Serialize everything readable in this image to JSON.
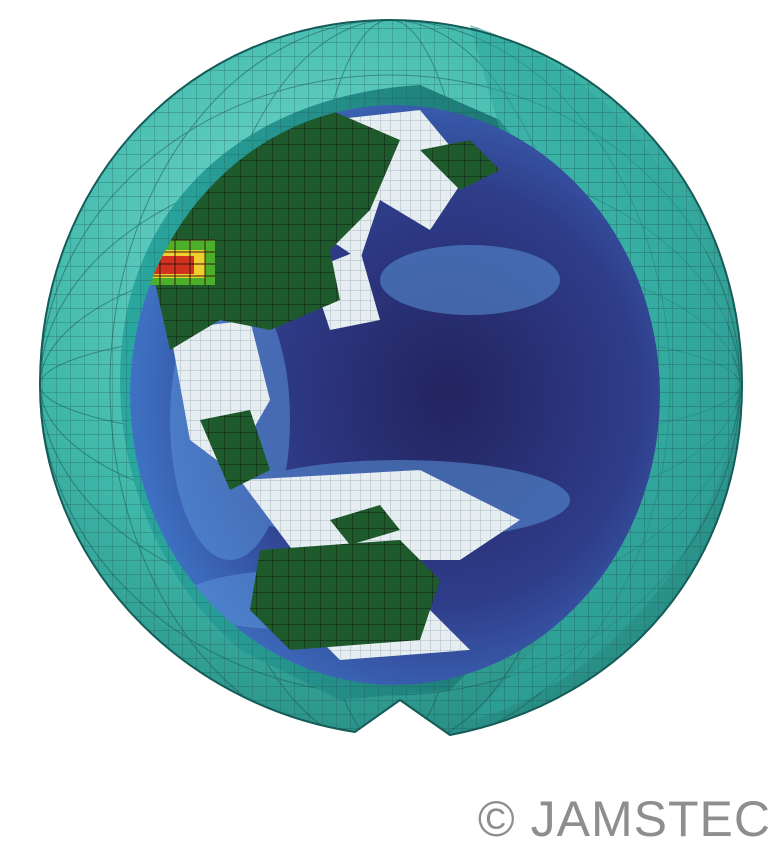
{
  "figure": {
    "subject": "cutaway-globe-grid-model",
    "colors": {
      "outer_shell": "#3fb8aa",
      "grid_line": "#1d4f4f",
      "ocean_deep": "#2a2a6e",
      "ocean_mid": "#3f6fc0",
      "ice_white": "#e6eef2",
      "land_green": "#1f5a2c",
      "hot_red": "#d23020",
      "hot_yellow": "#f0d030"
    }
  },
  "credit": {
    "text": "© JAMSTEC"
  }
}
